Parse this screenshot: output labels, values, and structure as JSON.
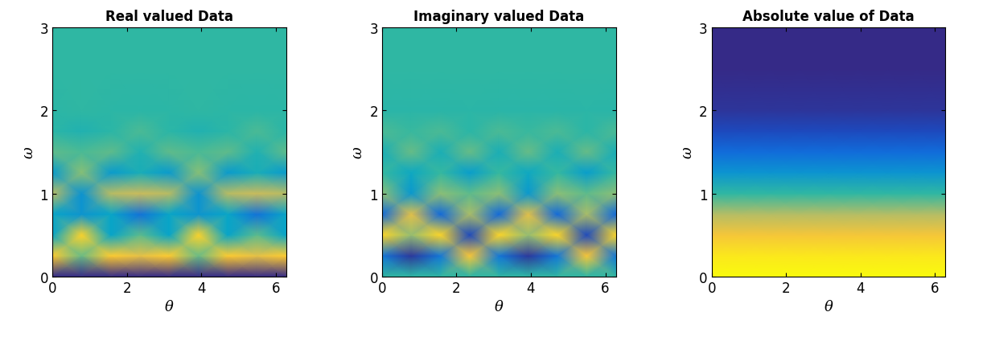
{
  "chart_data": [
    {
      "type": "heatmap",
      "title": "Real valued Data",
      "x_label": "θ",
      "y_label": "ω",
      "x": [
        0,
        0.785,
        1.571,
        2.356,
        3.142,
        3.927,
        4.712,
        5.498,
        6.283
      ],
      "y": [
        0,
        0.25,
        0.5,
        0.75,
        1,
        1.25,
        1.5,
        1.75,
        2,
        2.5,
        3
      ],
      "cells": [
        [
          -1,
          -1,
          -1,
          -1,
          -1,
          -1,
          -1,
          -1,
          -1
        ],
        [
          0.76,
          0.17,
          0.76,
          0.62,
          0.76,
          0.17,
          0.76,
          0.62,
          0.76
        ],
        [
          -0.24,
          0.8,
          -0.24,
          0.13,
          -0.24,
          0.8,
          -0.24,
          0.13,
          -0.24
        ],
        [
          -0.24,
          -0.36,
          -0.24,
          -0.6,
          -0.24,
          -0.36,
          -0.24,
          -0.6,
          -0.24
        ],
        [
          0.42,
          -0.37,
          0.42,
          0.48,
          0.42,
          -0.37,
          0.42,
          0.48,
          0.42
        ],
        [
          -0.32,
          0.25,
          -0.32,
          -0.13,
          -0.32,
          0.25,
          -0.32,
          -0.13,
          -0.32
        ],
        [
          0.14,
          0.08,
          0.14,
          -0.08,
          0.14,
          0.08,
          0.14,
          -0.08,
          0.14
        ],
        [
          -0.02,
          -0.08,
          -0.02,
          0.08,
          -0.02,
          -0.08,
          -0.02,
          0.08,
          -0.02
        ],
        [
          -0.01,
          0,
          -0.01,
          -0.02,
          -0.01,
          0,
          -0.01,
          -0.02,
          -0.01
        ],
        [
          0,
          0,
          0,
          0,
          0,
          0,
          0,
          0,
          0
        ],
        [
          0,
          0,
          0,
          0,
          0,
          0,
          0,
          0,
          0
        ]
      ],
      "clim": [
        -1,
        1
      ],
      "xlim": [
        0,
        6.283
      ],
      "ylim": [
        0,
        3
      ],
      "xticks": [
        0,
        2,
        4,
        6
      ],
      "yticks": [
        0,
        1,
        2,
        3
      ]
    },
    {
      "type": "heatmap",
      "title": "Imaginary valued Data",
      "x_label": "θ",
      "y_label": "ω",
      "x": [
        0,
        0.785,
        1.571,
        2.356,
        3.142,
        3.927,
        4.712,
        5.498,
        6.283
      ],
      "y": [
        0,
        0.25,
        0.5,
        0.75,
        1,
        1.25,
        1.5,
        1.75,
        2,
        2.5,
        3
      ],
      "cells": [
        [
          0,
          0,
          0,
          0,
          0,
          0,
          0,
          0,
          0
        ],
        [
          -0.57,
          -0.93,
          -0.57,
          0.72,
          -0.57,
          -0.93,
          -0.57,
          0.72,
          -0.57
        ],
        [
          0.82,
          0.3,
          0.82,
          -0.84,
          0.82,
          0.3,
          0.82,
          -0.84,
          0.82
        ],
        [
          -0.66,
          0.6,
          -0.66,
          0.37,
          -0.66,
          0.6,
          -0.66,
          0.37,
          -0.66
        ],
        [
          0.27,
          -0.33,
          0.27,
          0.14,
          0.27,
          -0.33,
          0.27,
          0.14,
          0.27
        ],
        [
          0.02,
          -0.2,
          0.02,
          -0.29,
          0.02,
          -0.2,
          0.02,
          -0.29,
          0.02
        ],
        [
          -0.12,
          0.16,
          -0.12,
          0.16,
          -0.12,
          0.16,
          -0.12,
          0.16,
          -0.12
        ],
        [
          0.08,
          0.03,
          0.08,
          -0.02,
          0.08,
          0.03,
          0.08,
          -0.02,
          0.08
        ],
        [
          -0.03,
          -0.03,
          -0.03,
          -0.02,
          -0.03,
          -0.03,
          -0.03,
          -0.02,
          -0.03
        ],
        [
          0,
          0,
          0,
          0,
          0,
          0,
          0,
          0,
          0
        ],
        [
          0,
          0,
          0,
          0,
          0,
          0,
          0,
          0,
          0
        ]
      ],
      "clim": [
        -1,
        1
      ],
      "xlim": [
        0,
        6.283
      ],
      "ylim": [
        0,
        3
      ],
      "xticks": [
        0,
        2,
        4,
        6
      ],
      "yticks": [
        0,
        1,
        2,
        3
      ]
    },
    {
      "type": "heatmap",
      "title": "Absolute value of Data",
      "x_label": "θ",
      "y_label": "ω",
      "x": [
        0,
        0.785,
        1.571,
        2.356,
        3.142,
        3.927,
        4.712,
        5.498,
        6.283
      ],
      "y": [
        0,
        0.25,
        0.5,
        0.75,
        1,
        1.25,
        1.5,
        1.75,
        2,
        2.5,
        3
      ],
      "cells": [
        [
          1,
          1,
          1,
          1,
          1,
          1,
          1,
          1,
          1
        ],
        [
          0.95,
          0.95,
          0.95,
          0.95,
          0.95,
          0.95,
          0.95,
          0.95,
          0.95
        ],
        [
          0.85,
          0.85,
          0.85,
          0.85,
          0.85,
          0.85,
          0.85,
          0.85,
          0.85
        ],
        [
          0.7,
          0.7,
          0.7,
          0.7,
          0.7,
          0.7,
          0.7,
          0.7,
          0.7
        ],
        [
          0.5,
          0.5,
          0.5,
          0.5,
          0.5,
          0.5,
          0.5,
          0.5,
          0.5
        ],
        [
          0.32,
          0.32,
          0.32,
          0.32,
          0.32,
          0.32,
          0.32,
          0.32,
          0.32
        ],
        [
          0.18,
          0.18,
          0.18,
          0.18,
          0.18,
          0.18,
          0.18,
          0.18,
          0.18
        ],
        [
          0.08,
          0.08,
          0.08,
          0.08,
          0.08,
          0.08,
          0.08,
          0.08,
          0.08
        ],
        [
          0.03,
          0.03,
          0.03,
          0.03,
          0.03,
          0.03,
          0.03,
          0.03,
          0.03
        ],
        [
          0,
          0,
          0,
          0,
          0,
          0,
          0,
          0,
          0
        ],
        [
          0,
          0,
          0,
          0,
          0,
          0,
          0,
          0,
          0
        ]
      ],
      "clim": [
        0,
        1
      ],
      "xlim": [
        0,
        6.283
      ],
      "ylim": [
        0,
        3
      ],
      "xticks": [
        0,
        2,
        4,
        6
      ],
      "yticks": [
        0,
        1,
        2,
        3
      ]
    }
  ]
}
